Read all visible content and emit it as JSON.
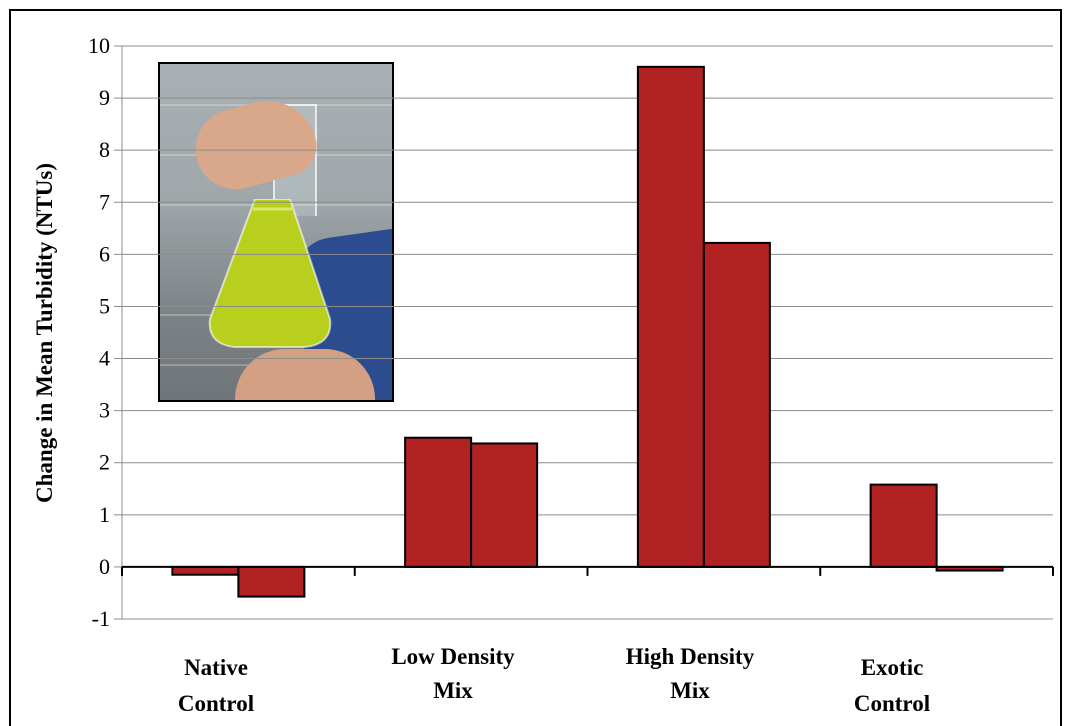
{
  "chart_data": {
    "type": "bar",
    "title": "",
    "xlabel": "",
    "ylabel": "Change in Mean Turbidity (NTUs)",
    "ylim": [
      -1,
      10
    ],
    "yticks": [
      "-1",
      "0",
      "1",
      "2",
      "3",
      "4",
      "5",
      "6",
      "7",
      "8",
      "9",
      "10"
    ],
    "grid": true,
    "legend": "none",
    "categories": [
      [
        "Native",
        "Control"
      ],
      [
        "Low Density",
        "Mix"
      ],
      [
        "High Density",
        "Mix"
      ],
      [
        "Exotic",
        "Control"
      ]
    ],
    "series": [
      {
        "values": [
          -0.15,
          2.48,
          9.6,
          1.58
        ]
      },
      {
        "values": [
          -0.57,
          2.37,
          6.22,
          -0.07
        ]
      }
    ],
    "bar_color": "#b22222",
    "bar_edge": "#000000"
  },
  "inset": {
    "icon": "flask-photo"
  }
}
